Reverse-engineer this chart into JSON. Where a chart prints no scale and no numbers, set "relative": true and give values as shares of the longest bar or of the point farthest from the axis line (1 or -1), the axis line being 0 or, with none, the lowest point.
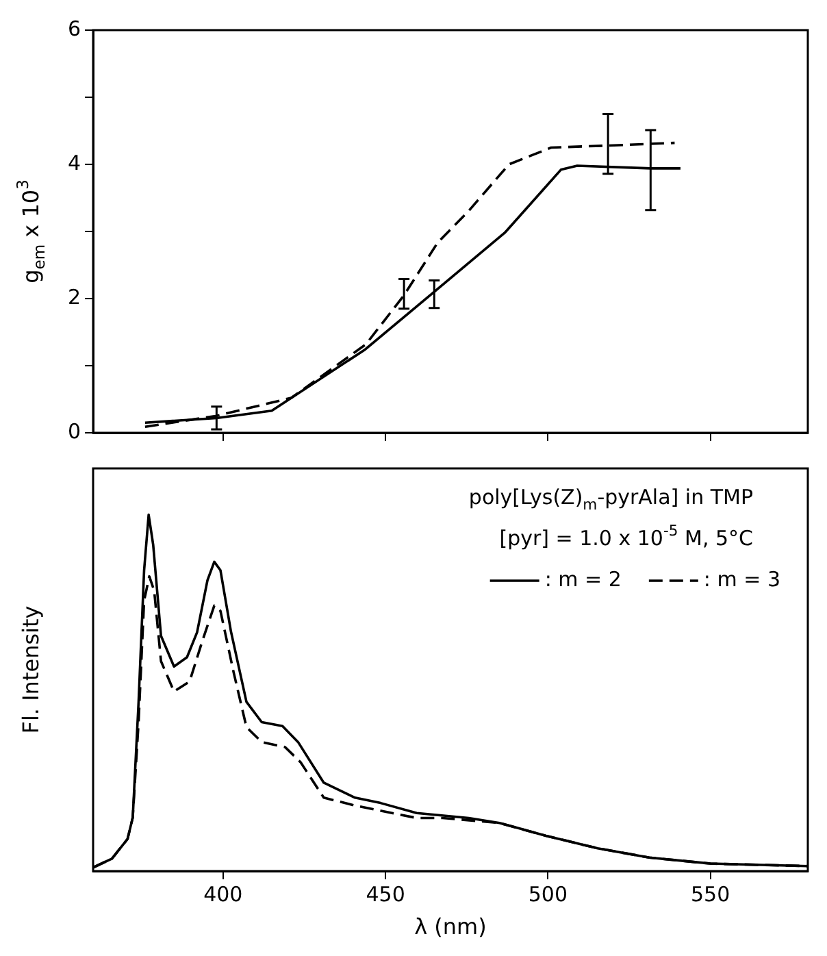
{
  "chart_data": [
    {
      "type": "line",
      "ylabel": "g$_{em}$ x 10$^{3}$",
      "xlim": [
        360,
        580
      ],
      "xticks": [
        {
          "value": 400,
          "label": null
        },
        {
          "value": 450,
          "label": null
        },
        {
          "value": 500,
          "label": null
        },
        {
          "value": 550,
          "label": null
        }
      ],
      "ylim": [
        0,
        6
      ],
      "yticks": [
        0,
        {
          "value": 1,
          "label": null
        },
        2,
        {
          "value": 3,
          "label": null
        },
        4,
        {
          "value": 5,
          "label": null
        },
        6
      ],
      "tick_labels": "y",
      "grid": false,
      "legend": false,
      "series": [
        {
          "color": "#000000",
          "line_style": "solid",
          "x": [
            376,
            398,
            415,
            443.7,
            465,
            486.7,
            504,
            509,
            531.6,
            540.8
          ],
          "values": [
            0.15,
            0.22,
            0.33,
            1.24,
            2.1,
            2.98,
            3.92,
            3.98,
            3.94,
            3.94
          ],
          "errors": [
            null,
            [
              0.05,
              0.39
            ],
            null,
            null,
            [
              1.86,
              2.27
            ],
            null,
            null,
            null,
            [
              3.32,
              4.51
            ],
            null
          ]
        },
        {
          "color": "#000000",
          "line_style": "dashed",
          "x": [
            376,
            397.7,
            421,
            444,
            455.7,
            466,
            475.5,
            488,
            501,
            518.5,
            539
          ],
          "values": [
            0.09,
            0.25,
            0.52,
            1.32,
            2.05,
            2.83,
            3.3,
            4.0,
            4.25,
            4.28,
            4.32
          ],
          "errors": [
            null,
            null,
            null,
            null,
            [
              1.85,
              2.29
            ],
            null,
            null,
            null,
            null,
            [
              3.86,
              4.75
            ],
            null
          ]
        }
      ]
    },
    {
      "type": "line",
      "relative": true,
      "xlabel": "λ (nm)",
      "ylabel": "Fl. Intensity",
      "xlim": [
        360,
        580
      ],
      "xticks": [
        400,
        450,
        500,
        550
      ],
      "tick_labels": "x",
      "grid": false,
      "legend": "top right",
      "annotations": [
        "poly[Lys(Z)$_{m}$-pyrAla] in TMP",
        "[pyr] = 1.0 x 10$^{-5}$ M, 5°C"
      ],
      "series": [
        {
          "name": ": m = 2",
          "color": "#000000",
          "line_style": "solid",
          "x": [
            360,
            365.8,
            370.6,
            372.2,
            374,
            375.7,
            377.1,
            378.5,
            380.9,
            384.9,
            388.9,
            392,
            395.2,
            397.3,
            399.2,
            402.4,
            407.2,
            411.9,
            418.3,
            423.1,
            431,
            440.6,
            448.5,
            459.6,
            475.6,
            485.1,
            499.4,
            515.3,
            531.2,
            550,
            580
          ],
          "values": [
            0.01,
            0.035,
            0.09,
            0.15,
            0.475,
            0.844,
            1.0,
            0.915,
            0.66,
            0.574,
            0.6,
            0.67,
            0.816,
            0.868,
            0.844,
            0.674,
            0.475,
            0.418,
            0.407,
            0.362,
            0.248,
            0.206,
            0.191,
            0.163,
            0.149,
            0.135,
            0.099,
            0.064,
            0.038,
            0.021,
            0.014
          ]
        },
        {
          "name": ": m = 3",
          "color": "#000000",
          "line_style": "dashed",
          "x": [
            360,
            365.8,
            370.6,
            372.2,
            374,
            375.7,
            377.3,
            378.8,
            380.9,
            384.9,
            389.7,
            393.6,
            397.3,
            399.2,
            403.2,
            407.2,
            411.9,
            419.1,
            423.9,
            431,
            440.6,
            459.6,
            467.6,
            485.1,
            499.4,
            515.3,
            531.2,
            550,
            580
          ],
          "values": [
            0.01,
            0.035,
            0.09,
            0.15,
            0.418,
            0.759,
            0.827,
            0.787,
            0.589,
            0.504,
            0.532,
            0.645,
            0.745,
            0.73,
            0.56,
            0.404,
            0.362,
            0.348,
            0.305,
            0.206,
            0.184,
            0.149,
            0.149,
            0.135,
            0.099,
            0.064,
            0.038,
            0.021,
            0.014
          ]
        }
      ]
    }
  ]
}
